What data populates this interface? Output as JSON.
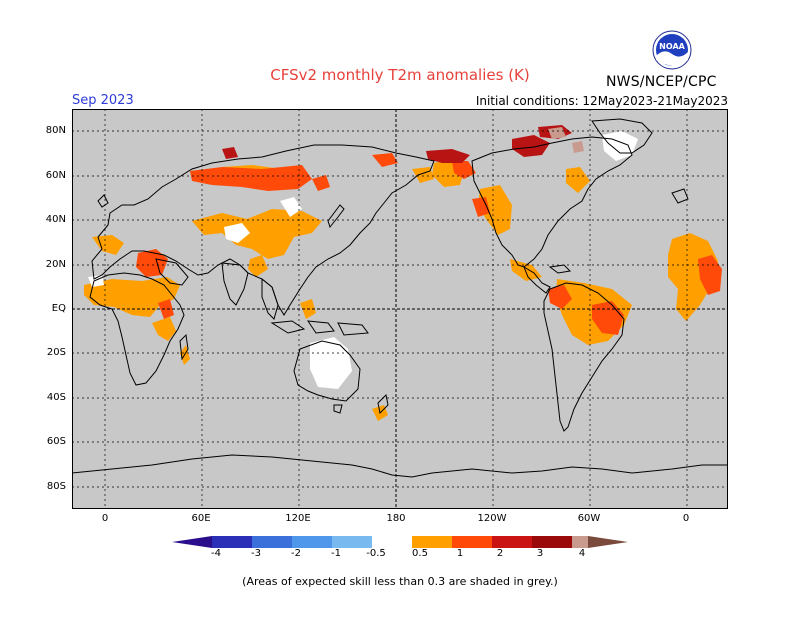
{
  "header": {
    "title": "CFSv2 monthly T2m anomalies (K)",
    "valid_month": "Sep 2023",
    "initial_conditions": "Initial conditions: 12May2023-21May2023",
    "agency": "NWS/NCEP/CPC",
    "logo_text": "NOAA"
  },
  "axes": {
    "lat_labels": [
      "80N",
      "60N",
      "40N",
      "20N",
      "EQ",
      "20S",
      "40S",
      "60S",
      "80S"
    ],
    "lon_labels": [
      "0",
      "60E",
      "120E",
      "180",
      "120W",
      "60W",
      "0"
    ]
  },
  "colorbar": {
    "labels": [
      "-4",
      "-3",
      "-2",
      "-1",
      "-0.5",
      "0.5",
      "1",
      "2",
      "3",
      "4"
    ],
    "colors": [
      "#2a0e8c",
      "#2b2fb8",
      "#3b6fd9",
      "#4f97ea",
      "#78b9f0",
      "#ffffff",
      "#ffa000",
      "#ff4a0a",
      "#ca1414",
      "#9b0a0a",
      "#c99a8e",
      "#7a4a3c"
    ]
  },
  "footnote": "(Areas of expected skill less than 0.3 are shaded in grey.)",
  "map": {
    "background": "#c8c8c8",
    "anomaly_colors": {
      "white": "#ffffff",
      "orange": "#ffa000",
      "red": "#ff4a0a",
      "darkred": "#b91414",
      "brown": "#c99a8e"
    }
  }
}
